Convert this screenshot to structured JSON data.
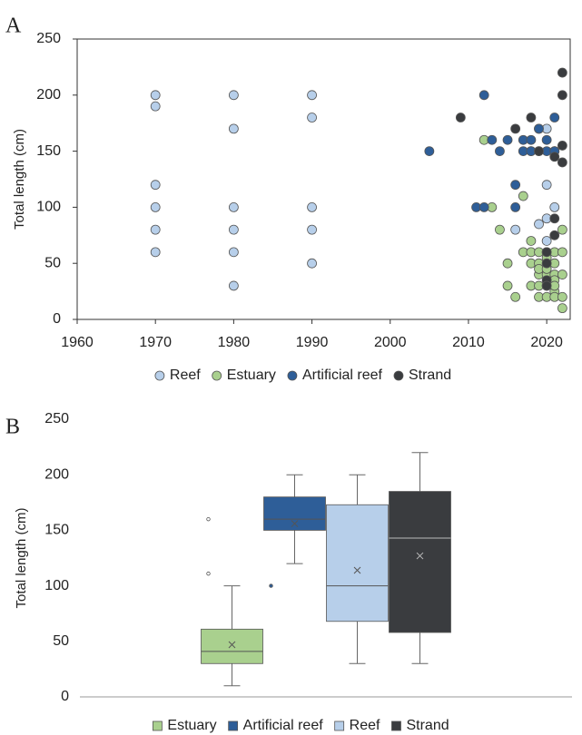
{
  "chart_data": [
    {
      "type": "scatter",
      "panel_label": "A",
      "y_label": "Total length (cm)",
      "xlim": [
        1960,
        2023
      ],
      "xticks": [
        1960,
        1970,
        1980,
        1990,
        2000,
        2010,
        2020
      ],
      "ylim": [
        0,
        250
      ],
      "yticks": [
        0,
        50,
        100,
        150,
        200,
        250
      ],
      "legend": "bottom",
      "series": [
        {
          "name": "Reef",
          "color": "#b7cfea",
          "x": [
            1970,
            1970,
            1970,
            1970,
            1970,
            1970,
            1980,
            1980,
            1980,
            1980,
            1980,
            1980,
            1990,
            1990,
            1990,
            1990,
            1990,
            2016,
            2018,
            2019,
            2019,
            2020,
            2020,
            2020,
            2020,
            2021,
            2021
          ],
          "values": [
            200,
            190,
            120,
            100,
            80,
            60,
            200,
            170,
            100,
            80,
            60,
            30,
            200,
            180,
            100,
            80,
            50,
            80,
            150,
            85,
            170,
            120,
            90,
            70,
            170,
            100,
            150
          ]
        },
        {
          "name": "Estuary",
          "color": "#a9d08e",
          "x": [
            2012,
            2013,
            2014,
            2015,
            2015,
            2016,
            2017,
            2017,
            2018,
            2018,
            2018,
            2018,
            2019,
            2019,
            2019,
            2019,
            2019,
            2019,
            2020,
            2020,
            2020,
            2020,
            2020,
            2020,
            2021,
            2021,
            2021,
            2021,
            2021,
            2021,
            2021,
            2022,
            2022,
            2022,
            2022,
            2022
          ],
          "values": [
            160,
            100,
            80,
            30,
            50,
            20,
            110,
            60,
            70,
            60,
            50,
            30,
            60,
            50,
            40,
            30,
            20,
            45,
            60,
            40,
            30,
            20,
            55,
            45,
            60,
            50,
            40,
            35,
            25,
            20,
            30,
            80,
            60,
            40,
            20,
            10
          ]
        },
        {
          "name": "Artificial reef",
          "color": "#2e5e98",
          "x": [
            2005,
            2011,
            2012,
            2012,
            2013,
            2014,
            2015,
            2016,
            2016,
            2017,
            2017,
            2018,
            2018,
            2019,
            2019,
            2020,
            2020,
            2021,
            2021
          ],
          "values": [
            150,
            100,
            100,
            200,
            160,
            150,
            160,
            120,
            100,
            160,
            150,
            160,
            150,
            170,
            150,
            160,
            150,
            180,
            150
          ]
        },
        {
          "name": "Strand",
          "color": "#3a3c3f",
          "x": [
            2009,
            2016,
            2018,
            2019,
            2020,
            2020,
            2020,
            2020,
            2021,
            2021,
            2021,
            2022,
            2022,
            2022,
            2022
          ],
          "values": [
            180,
            170,
            180,
            150,
            60,
            50,
            35,
            30,
            90,
            75,
            145,
            220,
            200,
            140,
            155
          ]
        }
      ]
    },
    {
      "type": "box",
      "panel_label": "B",
      "y_label": "Total length (cm)",
      "ylim": [
        0,
        250
      ],
      "yticks": [
        0,
        50,
        100,
        150,
        200,
        250
      ],
      "legend": "bottom",
      "series": [
        {
          "name": "Estuary",
          "color": "#a9d08e",
          "min": 10,
          "q1": 30,
          "median": 41,
          "q3": 61,
          "max": 100,
          "mean": 47,
          "outliers": [
            111,
            160
          ]
        },
        {
          "name": "Artificial reef",
          "color": "#2e5e98",
          "min": 120,
          "q1": 150,
          "median": 160,
          "q3": 180,
          "max": 200,
          "mean": 156,
          "outliers": [
            100
          ]
        },
        {
          "name": "Reef",
          "color": "#b7cfea",
          "min": 30,
          "q1": 68,
          "median": 100,
          "q3": 173,
          "max": 200,
          "mean": 114,
          "outliers": []
        },
        {
          "name": "Strand",
          "color": "#3a3c3f",
          "min": 30,
          "q1": 58,
          "median": 143,
          "q3": 185,
          "max": 220,
          "mean": 127,
          "outliers": []
        }
      ]
    }
  ]
}
